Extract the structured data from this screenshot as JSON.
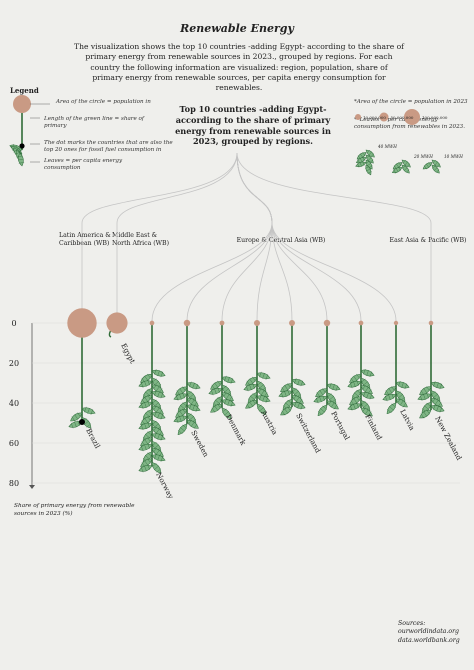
{
  "title": "Renewable Energy",
  "intro": "The visualization shows the top 10 countries -adding Egypt- according to the share of primary energy from renewable sources in 2023., grouped by regions. For each country the following information are visualized: region, population, share of primary energy from renewable sources, per capita energy consumption for renewables.",
  "subtitle": "Top 10 countries -adding Egypt- according to the share of primary energy from renewable sources in 2023, grouped by regions.",
  "legend": {
    "heading": "Legend",
    "circle": "Area of the circle = population in",
    "line": "Length of the green line = share of primary",
    "dot": "The dot marks the countries that are also the top 20 ones for fossil fuel consumption in",
    "leaves": "Leaves = per capita energy consumption"
  },
  "scale_notes": {
    "circle_note": "*Area of the circle = population in 2023",
    "leaves_note": "**Leaves = per capita energy consumption from renewables in 2023.",
    "pop_labels": [
      "10,000,000",
      "50,000,000",
      "100,000,000"
    ],
    "leaf_labels": [
      "40 MWH",
      "20 MWH",
      "10 MWH"
    ]
  },
  "ylabel": "Share of primary energy from renewable sources in 2023 (%)",
  "sources": [
    "Sources:",
    "ourworldindata.org",
    "data.worldbank.org"
  ],
  "colors": {
    "background": "#efefec",
    "stem": "#2f6b37",
    "leaf": "#7fb585",
    "leaf_dark": "#2e6b3a",
    "circle": "#c99a84",
    "branch": "#c4c4c4",
    "dot": "#000000"
  },
  "chart_data": {
    "type": "bar",
    "regions": [
      "Latin America & Caribbean (WB)",
      "Middle East & North Africa (WB)",
      "Europe & Central Asia (WB)",
      "East Asia & Pacific (WB)"
    ],
    "ylim": [
      0,
      80
    ],
    "yticks": [
      0,
      20,
      40,
      60,
      80
    ],
    "ylabel": "Share of primary energy from renewable sources in 2023 (%)",
    "countries": [
      {
        "name": "Brazil",
        "region": "Latin America & Caribbean (WB)",
        "share": 49.5,
        "population_m": 216,
        "leaves": 4,
        "fossil_top20": true
      },
      {
        "name": "Egypt",
        "region": "Middle East & North Africa (WB)",
        "share": 6,
        "population_m": 112,
        "leaves": 0,
        "fossil_top20": false
      },
      {
        "name": "Norway",
        "region": "Europe & Central Asia (WB)",
        "share": 71.5,
        "population_m": 5.5,
        "leaves": 28,
        "fossil_top20": false
      },
      {
        "name": "Sweden",
        "region": "Europe & Central Asia (WB)",
        "share": 50.5,
        "population_m": 10.5,
        "leaves": 12,
        "fossil_top20": false
      },
      {
        "name": "Denmark",
        "region": "Europe & Central Asia (WB)",
        "share": 42.5,
        "population_m": 5.9,
        "leaves": 9,
        "fossil_top20": false
      },
      {
        "name": "Austria",
        "region": "Europe & Central Asia (WB)",
        "share": 40.5,
        "population_m": 9.1,
        "leaves": 9,
        "fossil_top20": false
      },
      {
        "name": "Switzerland",
        "region": "Europe & Central Asia (WB)",
        "share": 42,
        "population_m": 8.8,
        "leaves": 8,
        "fossil_top20": false
      },
      {
        "name": "Portugal",
        "region": "Europe & Central Asia (WB)",
        "share": 41,
        "population_m": 10.3,
        "leaves": 6,
        "fossil_top20": false
      },
      {
        "name": "Finland",
        "region": "Europe & Central Asia (WB)",
        "share": 42.5,
        "population_m": 5.6,
        "leaves": 11,
        "fossil_top20": false
      },
      {
        "name": "Latvia",
        "region": "Europe & Central Asia (WB)",
        "share": 40,
        "population_m": 1.9,
        "leaves": 6,
        "fossil_top20": false
      },
      {
        "name": "New Zealand",
        "region": "East Asia & Pacific (WB)",
        "share": 43.5,
        "population_m": 5.2,
        "leaves": 8,
        "fossil_top20": false
      }
    ]
  }
}
